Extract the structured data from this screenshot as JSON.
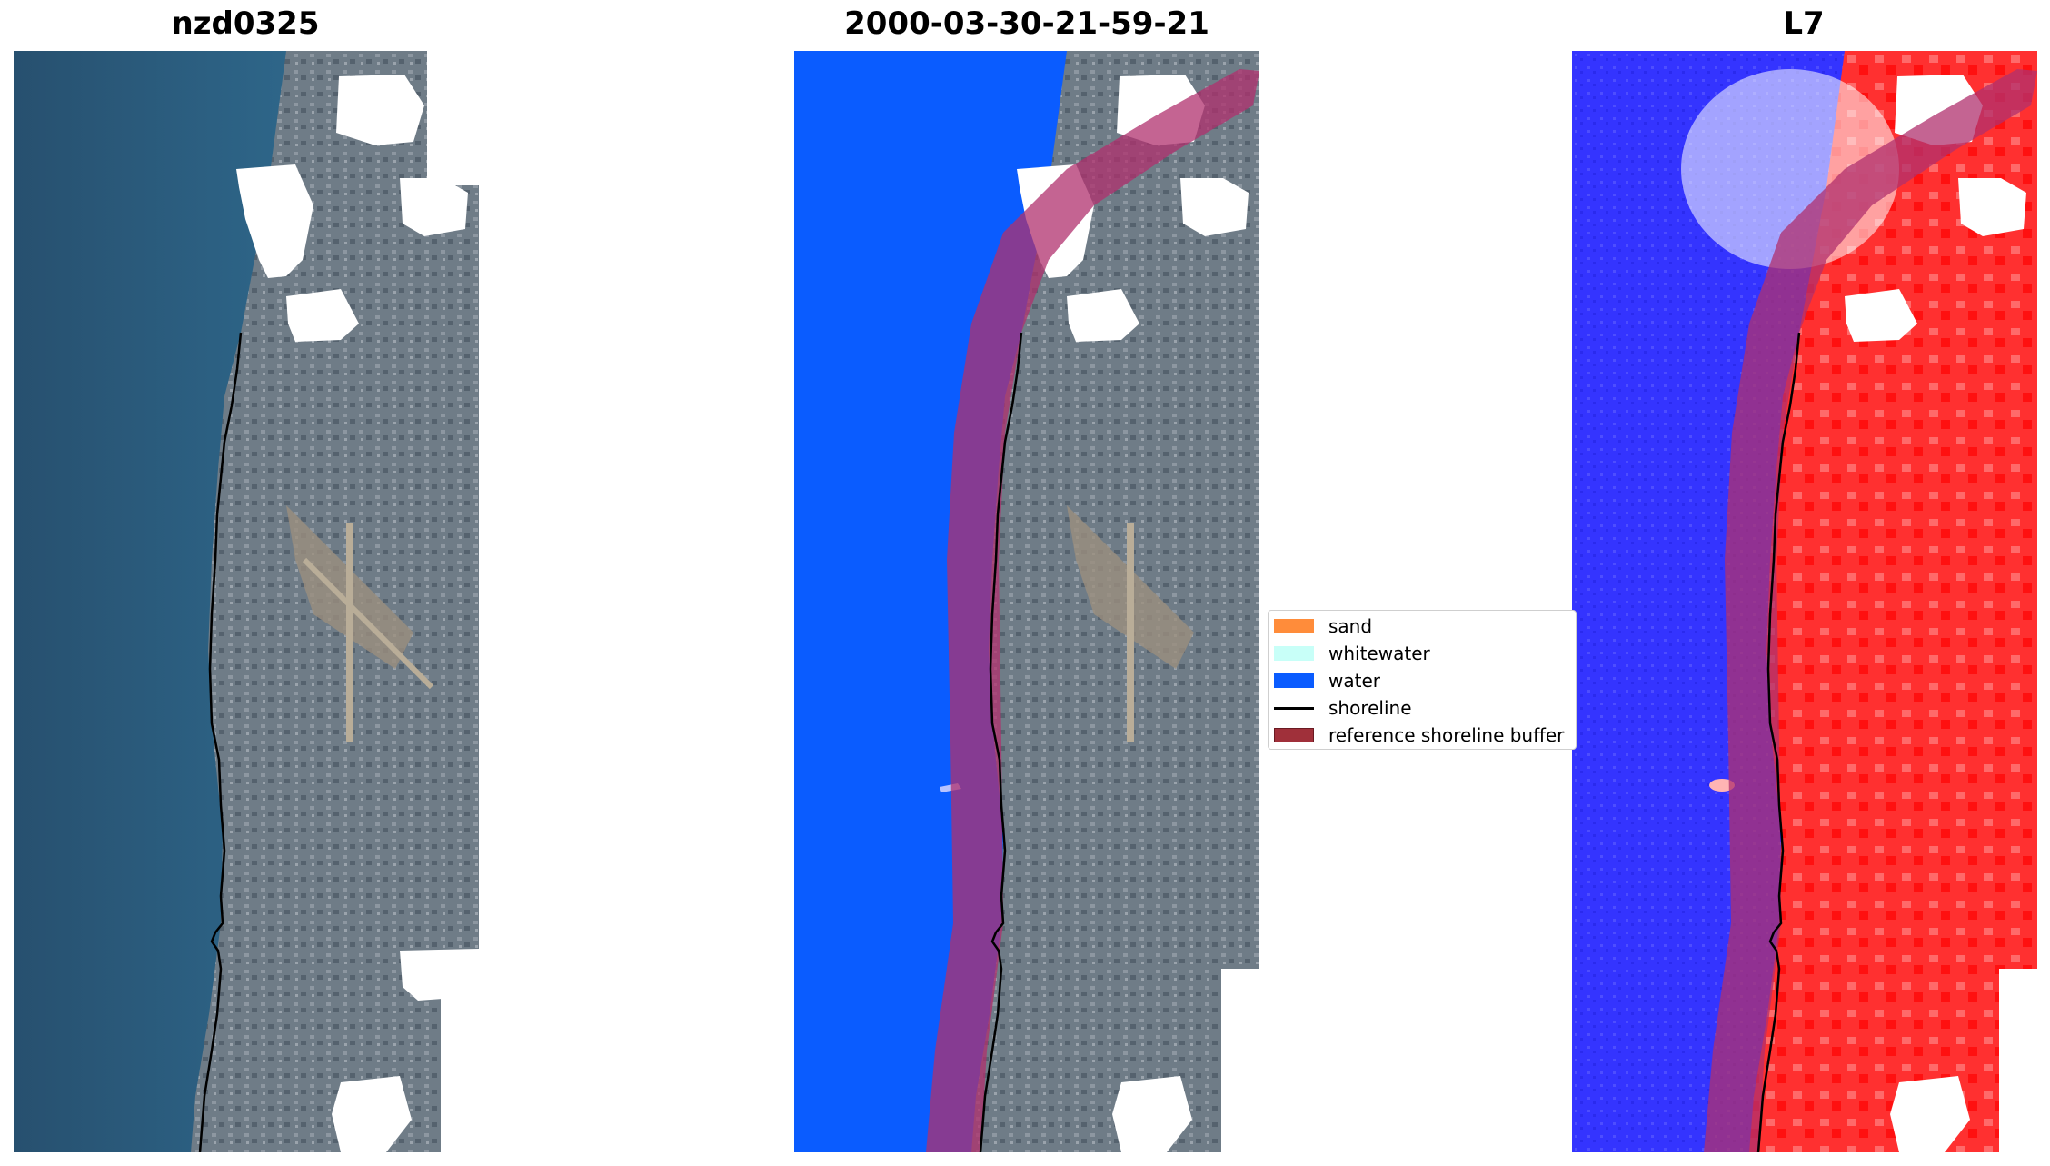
{
  "panels": [
    {
      "title": "nzd0325"
    },
    {
      "title": "2000-03-30-21-59-21"
    },
    {
      "title": "L7"
    }
  ],
  "legend": {
    "items": [
      {
        "label": "sand",
        "color": "#ff8c3a",
        "kind": "patch"
      },
      {
        "label": "whitewater",
        "color": "#c8fff8",
        "kind": "patch"
      },
      {
        "label": "water",
        "color": "#0a5cff",
        "kind": "patch"
      },
      {
        "label": "shoreline",
        "color": "#000000",
        "kind": "line"
      },
      {
        "label": "reference shoreline buffer",
        "color": "#a0303a",
        "kind": "patch"
      }
    ]
  },
  "colors": {
    "sea": "#2f5f88",
    "land": "#7b8794",
    "water_class": "#0a5cff",
    "buffer": "#b0306e",
    "index_water": "#3a3aff",
    "index_land": "#ff2a2a",
    "cloud_mask": "#ffffff"
  }
}
